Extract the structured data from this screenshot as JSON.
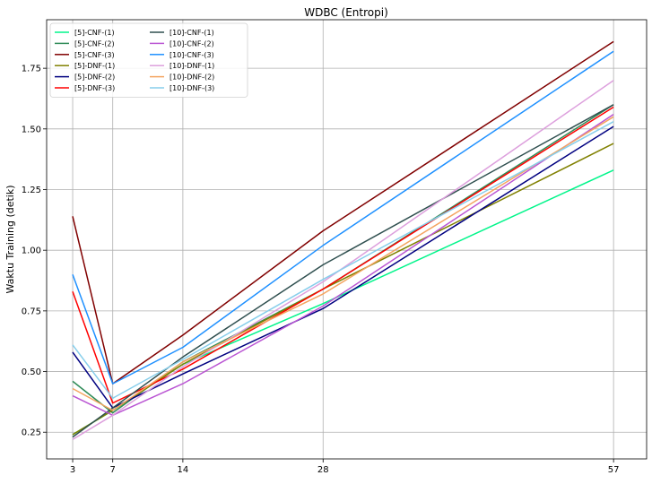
{
  "chart_data": {
    "type": "line",
    "title": "WDBC (Entropi)",
    "xlabel": "",
    "ylabel": "Waktu Training (detik)",
    "x": [
      3,
      7,
      14,
      28,
      57
    ],
    "x_tick_labels": [
      "3",
      "7",
      "14",
      "28",
      "57"
    ],
    "xlim": [
      0.4,
      60.3
    ],
    "ylim": [
      0.14,
      1.95
    ],
    "y_ticks": [
      0.25,
      0.5,
      0.75,
      1.0,
      1.25,
      1.5,
      1.75
    ],
    "y_tick_labels": [
      "0.25",
      "0.50",
      "0.75",
      "1.00",
      "1.25",
      "1.50",
      "1.75"
    ],
    "grid": true,
    "legend_position": "top-left",
    "series": [
      {
        "name": "[5]-CNF-(1)",
        "color": "#00f58a",
        "values": [
          0.24,
          0.34,
          0.53,
          0.78,
          1.33
        ]
      },
      {
        "name": "[5]-CNF-(2)",
        "color": "#2e8b57",
        "values": [
          0.46,
          0.33,
          0.54,
          0.84,
          1.6
        ]
      },
      {
        "name": "[5]-CNF-(3)",
        "color": "#800000",
        "values": [
          1.14,
          0.45,
          0.65,
          1.08,
          1.86
        ]
      },
      {
        "name": "[5]-DNF-(1)",
        "color": "#808000",
        "values": [
          0.24,
          0.34,
          0.53,
          0.84,
          1.44
        ]
      },
      {
        "name": "[5]-DNF-(2)",
        "color": "#000080",
        "values": [
          0.58,
          0.35,
          0.49,
          0.76,
          1.51
        ]
      },
      {
        "name": "[5]-DNF-(3)",
        "color": "#ff0000",
        "values": [
          0.83,
          0.37,
          0.51,
          0.84,
          1.59
        ]
      },
      {
        "name": "[10]-CNF-(1)",
        "color": "#2f4f4f",
        "values": [
          0.23,
          0.35,
          0.56,
          0.94,
          1.6
        ]
      },
      {
        "name": "[10]-CNF-(2)",
        "color": "#ba55d3",
        "values": [
          0.4,
          0.32,
          0.45,
          0.77,
          1.56
        ]
      },
      {
        "name": "[10]-CNF-(3)",
        "color": "#1e90ff",
        "values": [
          0.9,
          0.45,
          0.6,
          1.02,
          1.82
        ]
      },
      {
        "name": "[10]-DNF-(1)",
        "color": "#dda0dd",
        "values": [
          0.22,
          0.32,
          0.52,
          0.87,
          1.7
        ]
      },
      {
        "name": "[10]-DNF-(2)",
        "color": "#f4a460",
        "values": [
          0.43,
          0.34,
          0.54,
          0.82,
          1.55
        ]
      },
      {
        "name": "[10]-DNF-(3)",
        "color": "#87ceeb",
        "values": [
          0.61,
          0.39,
          0.55,
          0.88,
          1.53
        ]
      }
    ]
  }
}
